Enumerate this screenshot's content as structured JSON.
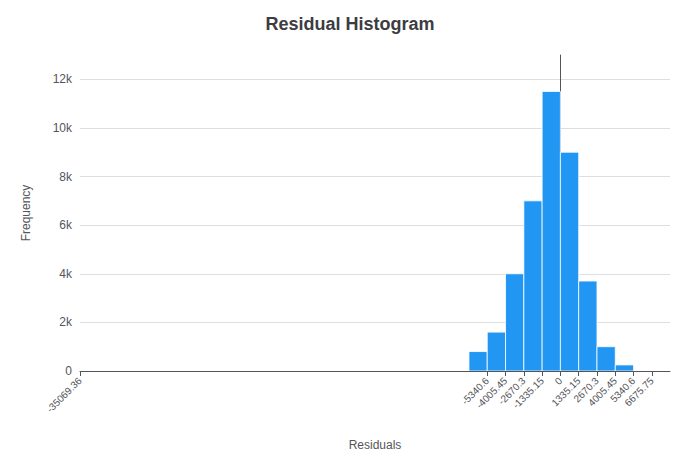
{
  "chart_data": {
    "type": "histogram",
    "title": "Residual Histogram",
    "xlabel": "Residuals",
    "ylabel": "Frequency",
    "bins": [
      -6675.75,
      -5340.6,
      -4005.45,
      -2670.3,
      -1335.15,
      0,
      1335.15,
      2670.3,
      4005.45,
      5340.6,
      6675.75
    ],
    "values": [
      800,
      1600,
      4000,
      7000,
      11500,
      9000,
      3700,
      1000,
      250,
      0
    ],
    "color": "#2196F3",
    "xlim": [
      -35069.36,
      8000
    ],
    "xticks": [
      -35069.36,
      -5340.6,
      -4005.45,
      -2670.3,
      -1335.15,
      0,
      1335.15,
      2670.3,
      4005.45,
      5340.6,
      6675.75
    ],
    "ylim": [
      0,
      13000
    ],
    "yticks": [
      0,
      {
        "value": 2000,
        "label": "2k"
      },
      {
        "value": 4000,
        "label": "4k"
      },
      {
        "value": 6000,
        "label": "6k"
      },
      {
        "value": 8000,
        "label": "8k"
      },
      {
        "value": 10000,
        "label": "10k"
      },
      {
        "value": 12000,
        "label": "12k"
      }
    ],
    "grid": "y"
  }
}
